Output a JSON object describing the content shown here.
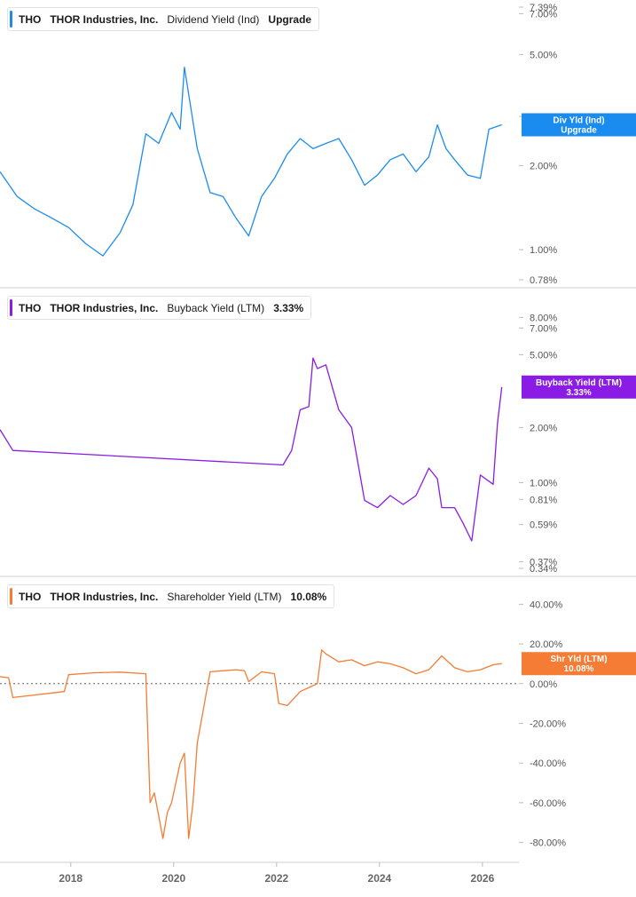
{
  "chart_data": [
    {
      "type": "line",
      "ticker": "THO",
      "company": "THOR Industries, Inc.",
      "title": "Dividend Yield (Ind)",
      "legend_value": "Upgrade",
      "callout": [
        "Div Yld (Ind)",
        "Upgrade"
      ],
      "color": "#1a8cf0",
      "yscale": "log",
      "ylim": [
        0.78,
        7.39
      ],
      "yticks": [
        "7.39%",
        "7.00%",
        "5.00%",
        "3.00%",
        "2.00%",
        "1.00%",
        "0.78%"
      ],
      "x": [
        "2016-08",
        "2016-12",
        "2017-04",
        "2017-08",
        "2017-12",
        "2018-04",
        "2018-08",
        "2018-12",
        "2019-03",
        "2019-06",
        "2019-09",
        "2019-12",
        "2020-02",
        "2020-03",
        "2020-06",
        "2020-09",
        "2020-12",
        "2021-03",
        "2021-06",
        "2021-09",
        "2021-12",
        "2022-03",
        "2022-06",
        "2022-09",
        "2022-12",
        "2023-03",
        "2023-06",
        "2023-09",
        "2023-12",
        "2024-03",
        "2024-06",
        "2024-09",
        "2024-12",
        "2025-02",
        "2025-04",
        "2025-06",
        "2025-09",
        "2025-12",
        "2026-02",
        "2026-05"
      ],
      "y": [
        1.9,
        1.55,
        1.4,
        1.3,
        1.2,
        1.05,
        0.95,
        1.15,
        1.45,
        2.6,
        2.4,
        3.1,
        2.7,
        4.5,
        2.3,
        1.6,
        1.55,
        1.3,
        1.12,
        1.55,
        1.8,
        2.2,
        2.5,
        2.3,
        2.4,
        2.5,
        2.1,
        1.7,
        1.85,
        2.1,
        2.2,
        1.9,
        2.15,
        2.8,
        2.3,
        2.1,
        1.85,
        1.8,
        2.7,
        2.8
      ]
    },
    {
      "type": "line",
      "ticker": "THO",
      "company": "THOR Industries, Inc.",
      "title": "Buyback Yield (LTM)",
      "legend_value": "3.33%",
      "callout": [
        "Buyback Yield (LTM)",
        "3.33%"
      ],
      "color": "#8a1ce6",
      "yscale": "log",
      "ylim": [
        0.34,
        10.5
      ],
      "yticks": [
        "8.00%",
        "7.00%",
        "5.00%",
        "2.00%",
        "1.00%",
        "0.81%",
        "0.59%",
        "0.37%",
        "0.34%"
      ],
      "x": [
        "2016-08",
        "2016-11",
        "2022-02",
        "2022-04",
        "2022-06",
        "2022-08",
        "2022-09",
        "2022-10",
        "2022-12",
        "2023-03",
        "2023-06",
        "2023-09",
        "2023-12",
        "2024-03",
        "2024-06",
        "2024-09",
        "2024-12",
        "2025-02",
        "2025-03",
        "2025-06",
        "2025-08",
        "2025-10",
        "2025-12",
        "2026-03",
        "2026-04",
        "2026-05"
      ],
      "y": [
        1.95,
        1.5,
        1.25,
        1.5,
        2.5,
        2.6,
        4.8,
        4.2,
        4.4,
        2.5,
        2.0,
        0.8,
        0.73,
        0.85,
        0.76,
        0.85,
        1.2,
        1.05,
        0.73,
        0.73,
        0.6,
        0.48,
        1.1,
        0.98,
        2.1,
        3.33
      ]
    },
    {
      "type": "line",
      "ticker": "THO",
      "company": "THOR Industries, Inc.",
      "title": "Shareholder Yield (LTM)",
      "legend_value": "10.08%",
      "callout": [
        "Shr Yld (LTM)",
        "10.08%"
      ],
      "color": "#f47c34",
      "yscale": "linear",
      "ylim": [
        -86,
        50
      ],
      "yticks": [
        "40.00%",
        "20.00%",
        "0.00%",
        "-20.00%",
        "-40.00%",
        "-60.00%",
        "-80.00%"
      ],
      "zero_line": true,
      "x": [
        "2016-08",
        "2016-10",
        "2016-11",
        "2017-11",
        "2017-12",
        "2018-06",
        "2018-12",
        "2019-06",
        "2019-07",
        "2019-08",
        "2019-10",
        "2019-11",
        "2019-12",
        "2020-02",
        "2020-03",
        "2020-04",
        "2020-05",
        "2020-06",
        "2020-09",
        "2021-03",
        "2021-05",
        "2021-06",
        "2021-09",
        "2021-12",
        "2022-01",
        "2022-03",
        "2022-06",
        "2022-09",
        "2022-10",
        "2022-11",
        "2022-12",
        "2023-03",
        "2023-06",
        "2023-09",
        "2023-12",
        "2024-03",
        "2024-06",
        "2024-09",
        "2024-12",
        "2025-03",
        "2025-06",
        "2025-09",
        "2025-12",
        "2026-03",
        "2026-05"
      ],
      "y": [
        3.5,
        3.0,
        -7.0,
        -4.0,
        4.5,
        5.5,
        5.8,
        5.0,
        -60,
        -55,
        -78,
        -65,
        -60,
        -40,
        -35,
        -78,
        -60,
        -30,
        6.0,
        7.0,
        6.5,
        1.0,
        6.0,
        5.0,
        -10,
        -11,
        -4.0,
        -1.0,
        0.0,
        17.0,
        15.0,
        11.0,
        12.0,
        9.0,
        11.0,
        10.0,
        8.0,
        5.0,
        7.0,
        14.0,
        8.0,
        6.0,
        7.0,
        9.5,
        10.08
      ]
    }
  ],
  "x_axis": {
    "range": [
      "2016-08",
      "2026-09"
    ],
    "ticks": [
      "2018",
      "2020",
      "2022",
      "2024",
      "2026"
    ]
  },
  "colors": {
    "grid": "#eeeeee",
    "axis_text": "#555555",
    "separator": "#cfcfcf"
  }
}
